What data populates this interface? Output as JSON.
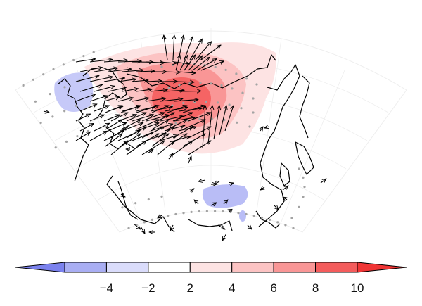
{
  "colorbar": {
    "tick_labels": [
      "−4",
      "−2",
      "2",
      "4",
      "6",
      "8",
      "10"
    ],
    "bins": [
      {
        "color": "#a9aef3"
      },
      {
        "color": "#dadcfb"
      },
      {
        "color": "#ffffff"
      },
      {
        "color": "#fde3e3"
      },
      {
        "color": "#fcc3c3"
      },
      {
        "color": "#f99696"
      },
      {
        "color": "#f45c5c"
      }
    ],
    "extend_low_color": "#7b82ee",
    "extend_high_color": "#f03535"
  },
  "colors": {
    "coastline": "#000000",
    "vector": "#000000",
    "stipple": "#a3a3a3",
    "grid": "#eeeeee"
  }
}
